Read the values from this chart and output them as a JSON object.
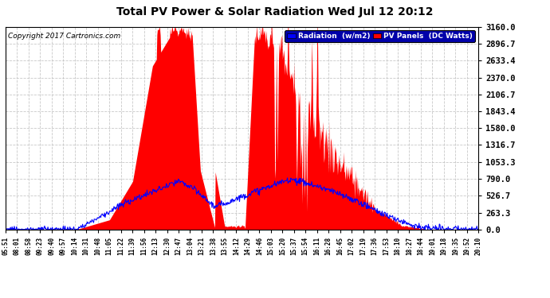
{
  "title": "Total PV Power & Solar Radiation Wed Jul 12 20:12",
  "copyright": "Copyright 2017 Cartronics.com",
  "bg_color": "#ffffff",
  "plot_bg_color": "#ffffff",
  "grid_color": "#aaaaaa",
  "y_max": 3160.0,
  "y_ticks": [
    0.0,
    263.3,
    526.7,
    790.0,
    1053.3,
    1316.7,
    1580.0,
    1843.4,
    2106.7,
    2370.0,
    2633.4,
    2896.7,
    3160.0
  ],
  "pv_color": "#ff0000",
  "rad_color": "#0000ff",
  "x_labels": [
    "05:51",
    "08:01",
    "08:58",
    "09:23",
    "09:40",
    "09:57",
    "10:14",
    "10:31",
    "10:48",
    "11:05",
    "11:22",
    "11:39",
    "11:56",
    "12:13",
    "12:30",
    "12:47",
    "13:04",
    "13:21",
    "13:38",
    "13:55",
    "14:12",
    "14:29",
    "14:46",
    "15:03",
    "15:20",
    "15:37",
    "15:54",
    "16:11",
    "16:28",
    "16:45",
    "17:02",
    "17:19",
    "17:36",
    "17:53",
    "18:10",
    "18:27",
    "18:44",
    "19:01",
    "19:18",
    "19:35",
    "19:52",
    "20:10"
  ]
}
